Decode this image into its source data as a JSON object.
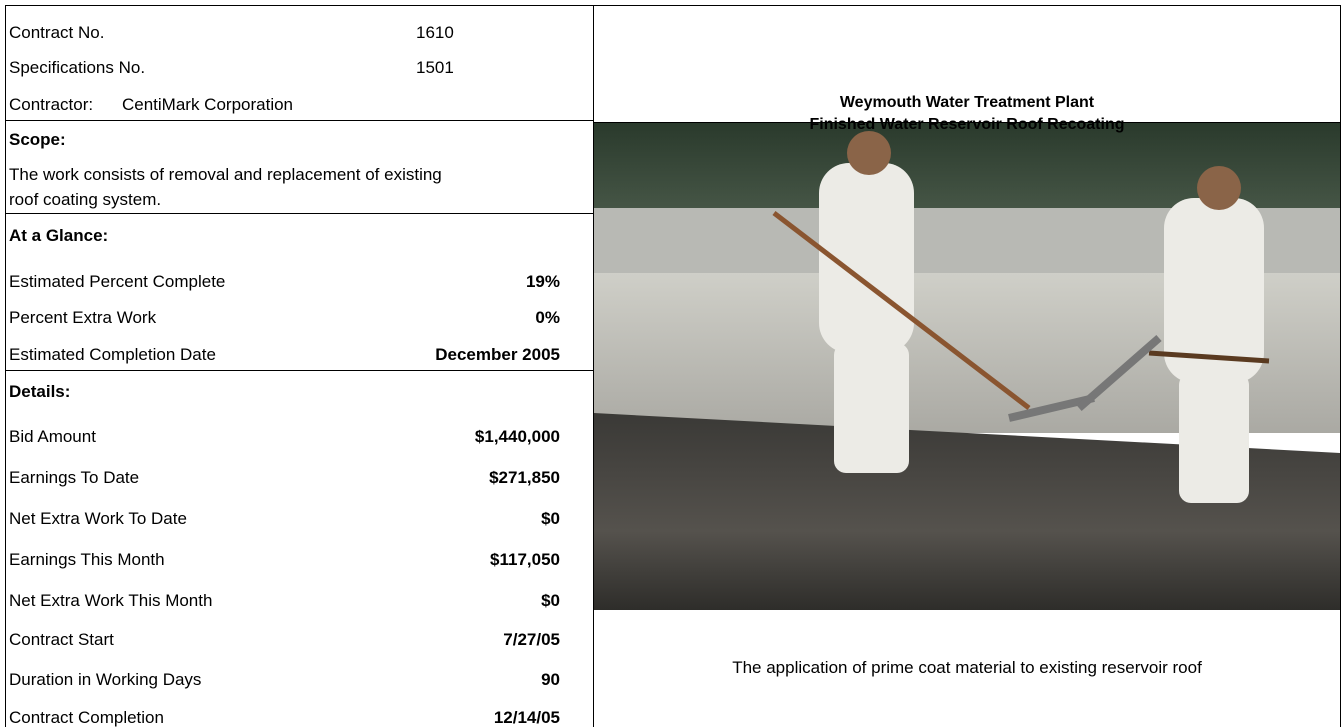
{
  "contract": {
    "rows": [
      {
        "label": "Contract No.",
        "value": "1610"
      },
      {
        "label": "Specifications No.",
        "value": "1501"
      }
    ],
    "contractor": {
      "label": "Contractor:",
      "value": "CentiMark Corporation"
    }
  },
  "scope": {
    "heading": "Scope:",
    "lines": [
      "The work consists of removal and replacement of existing",
      "roof coating system."
    ]
  },
  "at_a_glance": {
    "heading": "At a Glance:",
    "rows": [
      {
        "label": "Estimated Percent Complete",
        "value": "19%"
      },
      {
        "label": "Percent Extra Work",
        "value": "0%"
      },
      {
        "label": "Estimated Completion Date",
        "value": "December 2005"
      }
    ]
  },
  "details": {
    "heading": "Details:",
    "rows": [
      {
        "label": "Bid Amount",
        "value": "$1,440,000"
      },
      {
        "label": "Earnings To Date",
        "value": "$271,850"
      },
      {
        "label": "Net Extra Work To Date",
        "value": "$0"
      },
      {
        "label": "Earnings This Month",
        "value": "$117,050"
      },
      {
        "label": "Net Extra Work This Month",
        "value": "$0"
      },
      {
        "label": "Contract Start",
        "value": "7/27/05"
      },
      {
        "label": "Duration in Working Days",
        "value": "90"
      },
      {
        "label": "Contract Completion",
        "value": "12/14/05"
      }
    ]
  },
  "project": {
    "title_lines": [
      "Weymouth Water Treatment Plant",
      "Finished Water Reservoir Roof Recoating"
    ],
    "photo_caption": "The application of prime coat material to existing reservoir roof"
  }
}
